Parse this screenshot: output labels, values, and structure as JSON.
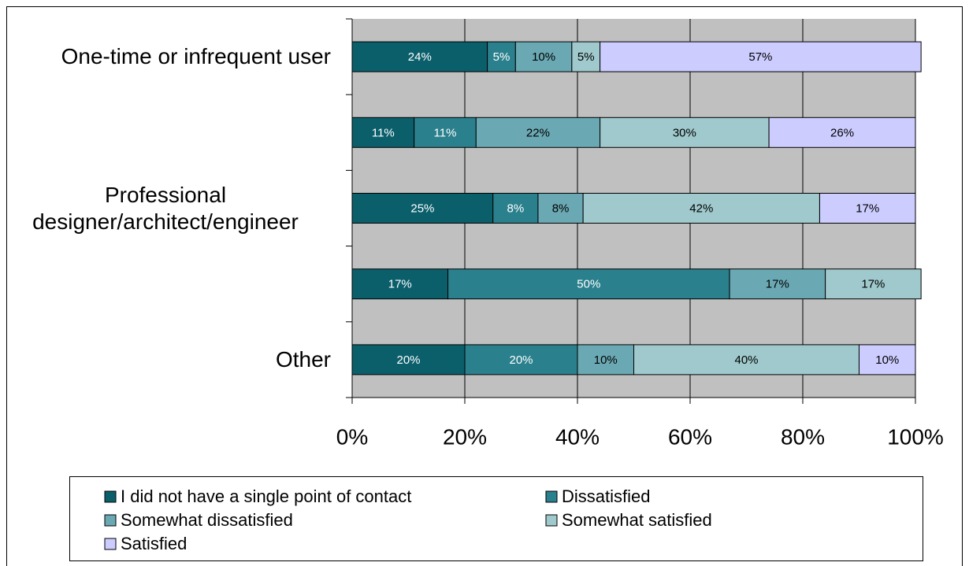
{
  "chart_data": {
    "type": "stacked-bar-horizontal",
    "categories": [
      "One-time or infrequent user",
      null,
      "Professional designer/architect/engineer",
      null,
      "Other"
    ],
    "series": [
      {
        "name": "I did not have a single point of contact",
        "color": "#0b5f6b",
        "values": [
          24,
          11,
          25,
          17,
          20
        ],
        "value_labels": [
          "24%",
          "11%",
          "25%",
          "17%",
          "20%"
        ]
      },
      {
        "name": "Dissatisfied",
        "color": "#2a808c",
        "values": [
          5,
          11,
          8,
          50,
          20
        ],
        "value_labels": [
          "5%",
          "11%",
          "8%",
          "50%",
          "20%"
        ]
      },
      {
        "name": "Somewhat dissatisfied",
        "color": "#6aa9b3",
        "values": [
          10,
          22,
          8,
          17,
          10
        ],
        "value_labels": [
          "10%",
          "22%",
          "8%",
          "17%",
          "10%"
        ]
      },
      {
        "name": "Somewhat satisfied",
        "color": "#9fc9cc",
        "values": [
          5,
          30,
          42,
          17,
          40
        ],
        "value_labels": [
          "5%",
          "30%",
          "42%",
          "17%",
          "40%"
        ]
      },
      {
        "name": "Satisfied",
        "color": "#ccccff",
        "values": [
          57,
          26,
          17,
          null,
          10
        ],
        "value_labels": [
          "57%",
          "26%",
          "17%",
          null,
          "10%"
        ]
      }
    ],
    "xlim": [
      0,
      100
    ],
    "xticks": [
      {
        "value": 0,
        "label": "0%"
      },
      {
        "value": 20,
        "label": "20%"
      },
      {
        "value": 40,
        "label": "40%"
      },
      {
        "value": 60,
        "label": "60%"
      },
      {
        "value": 80,
        "label": "80%"
      },
      {
        "value": 100,
        "label": "100%"
      }
    ],
    "grid": true
  }
}
